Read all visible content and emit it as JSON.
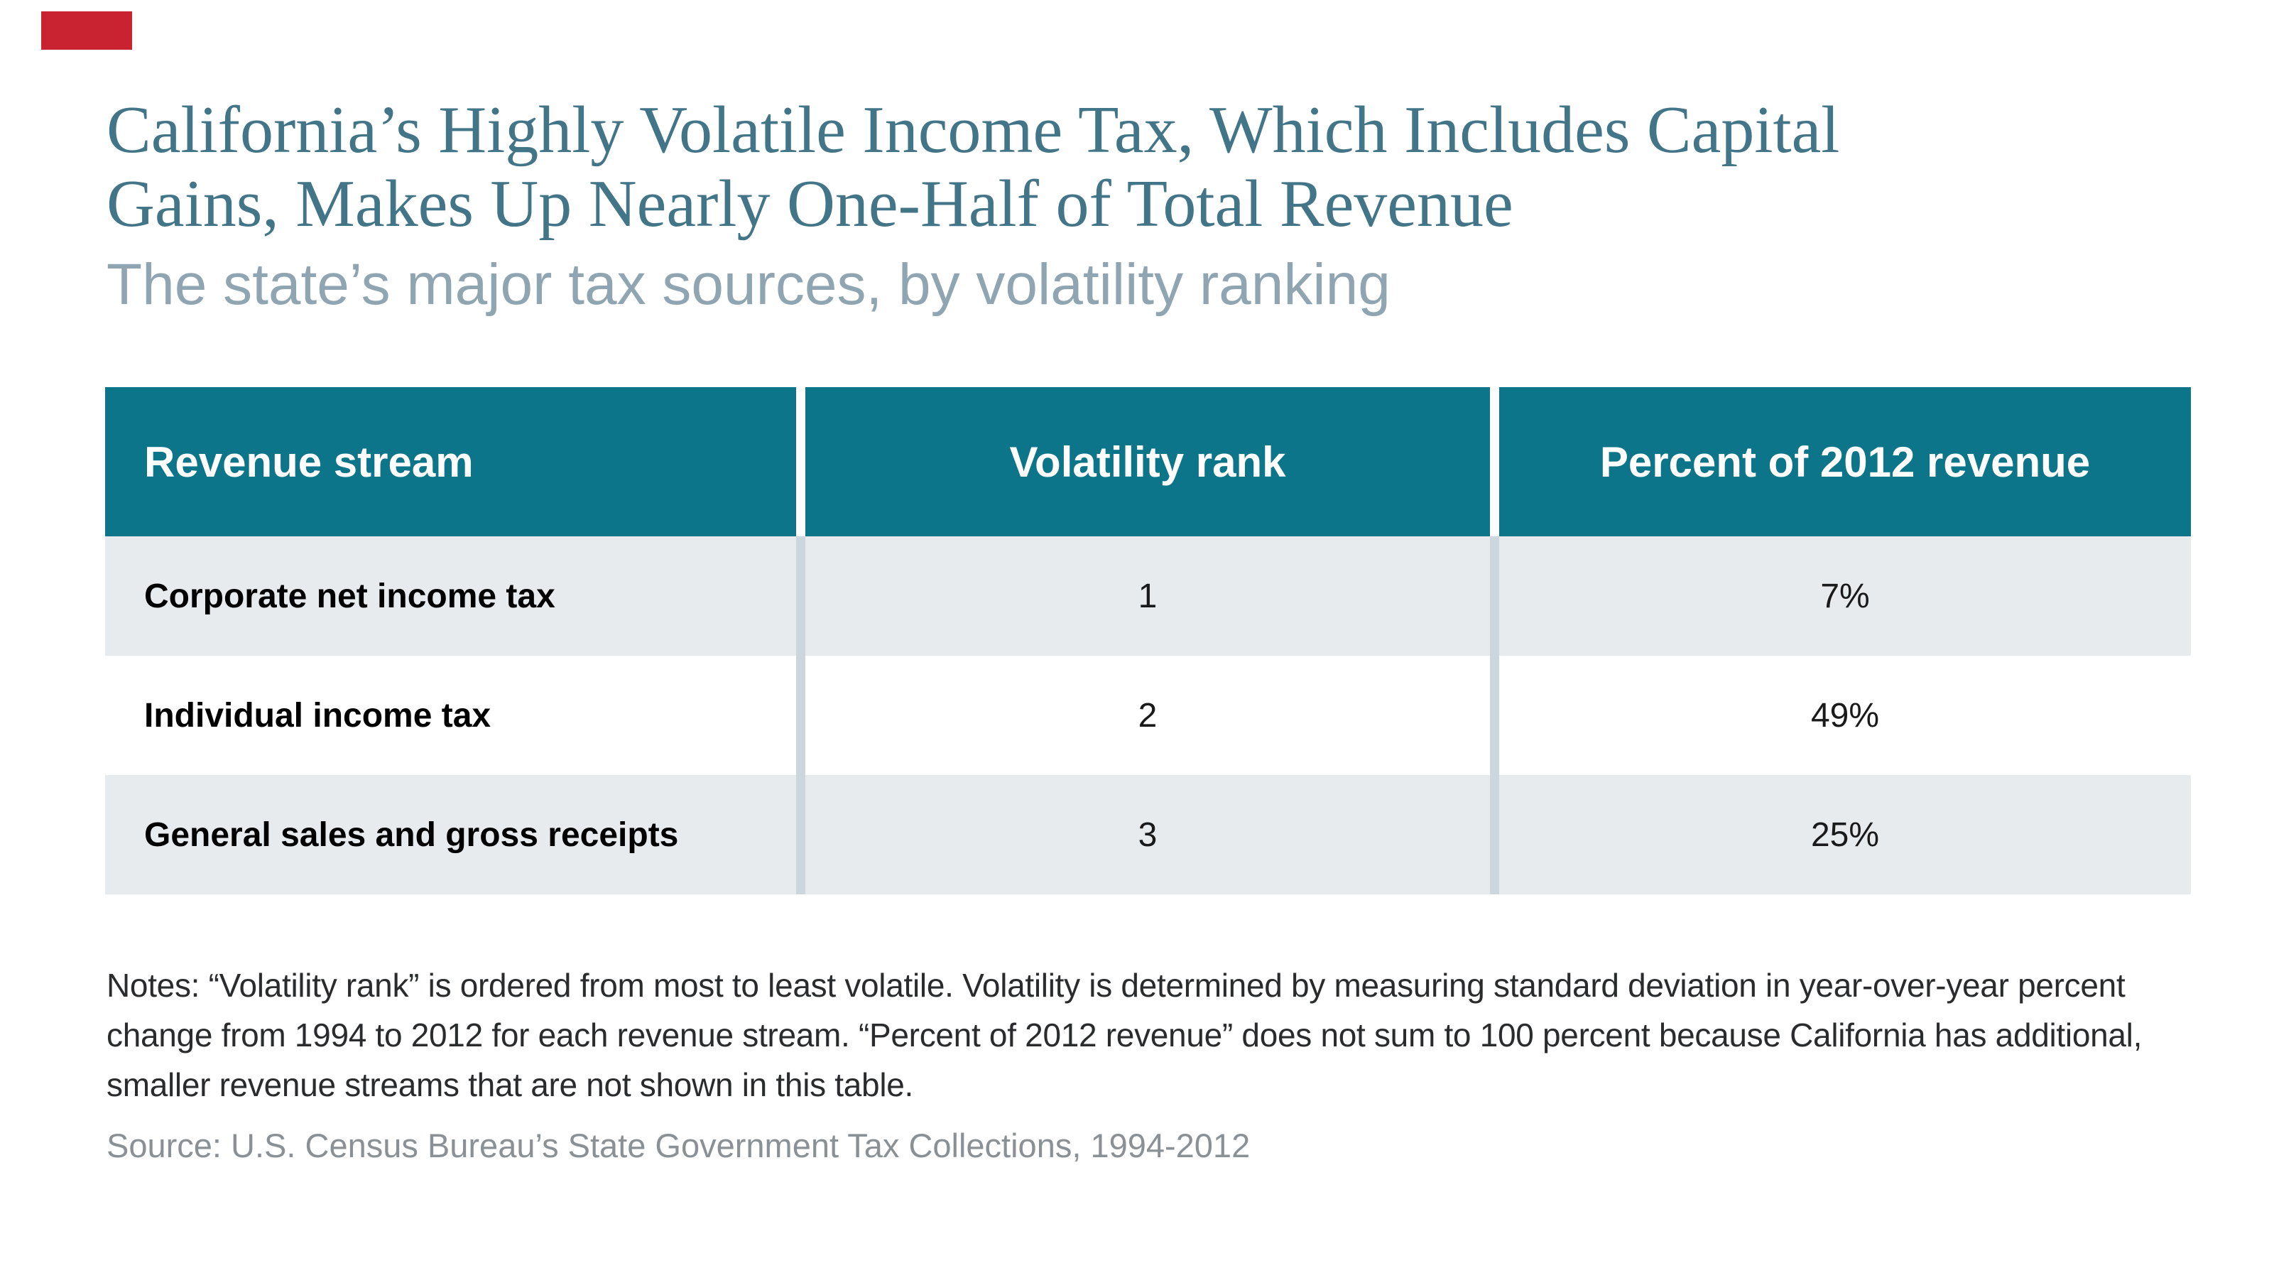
{
  "page": {
    "title_line1": "California’s Highly Volatile Income Tax, Which Includes Capital",
    "title_line2": "Gains, Makes Up Nearly One-Half of Total Revenue",
    "subtitle": "The state’s major tax sources, by volatility ranking",
    "notes": "Notes: “Volatility rank” is ordered from most to least volatile. Volatility is determined by measuring standard deviation in year-over-year percent change from 1994 to 2012 for each revenue stream. “Percent of 2012 revenue” does not sum to 100 percent because California has additional, smaller revenue streams that are not shown in this table.",
    "source": "Source: U.S. Census Bureau’s State Government Tax Collections, 1994-2012"
  },
  "table": {
    "columns": [
      "Revenue stream",
      "Volatility rank",
      "Percent of 2012 revenue"
    ],
    "rows": [
      {
        "stream": "Corporate net income tax",
        "rank": "1",
        "percent": "7%"
      },
      {
        "stream": "Individual income tax",
        "rank": "2",
        "percent": "49%"
      },
      {
        "stream": "General sales and gross receipts",
        "rank": "3",
        "percent": "25%"
      }
    ]
  },
  "colors": {
    "header_teal": "#0d7589",
    "title_teal": "#437589",
    "subtitle_gray_blue": "#8fa6b2",
    "row_stripe_gray": "#e8ebee",
    "column_separator": "#cbd6dd",
    "notes_text": "#292b2d",
    "source_text": "#8b9094",
    "red_marker": "#c92231"
  },
  "chart_data": {
    "type": "table",
    "title": "California’s Highly Volatile Income Tax, Which Includes Capital Gains, Makes Up Nearly One-Half of Total Revenue",
    "subtitle": "The state’s major tax sources, by volatility ranking",
    "columns": [
      "Revenue stream",
      "Volatility rank",
      "Percent of 2012 revenue"
    ],
    "rows": [
      [
        "Corporate net income tax",
        1,
        "7%"
      ],
      [
        "Individual income tax",
        2,
        "49%"
      ],
      [
        "General sales and gross receipts",
        3,
        "25%"
      ]
    ],
    "notes": "Notes: “Volatility rank” is ordered from most to least volatile. Volatility is determined by measuring standard deviation in year-over-year percent change from 1994 to 2012 for each revenue stream. “Percent of 2012 revenue” does not sum to 100 percent because California has additional, smaller revenue streams that are not shown in this table.",
    "source": "Source: U.S. Census Bureau’s State Government Tax Collections, 1994-2012"
  }
}
